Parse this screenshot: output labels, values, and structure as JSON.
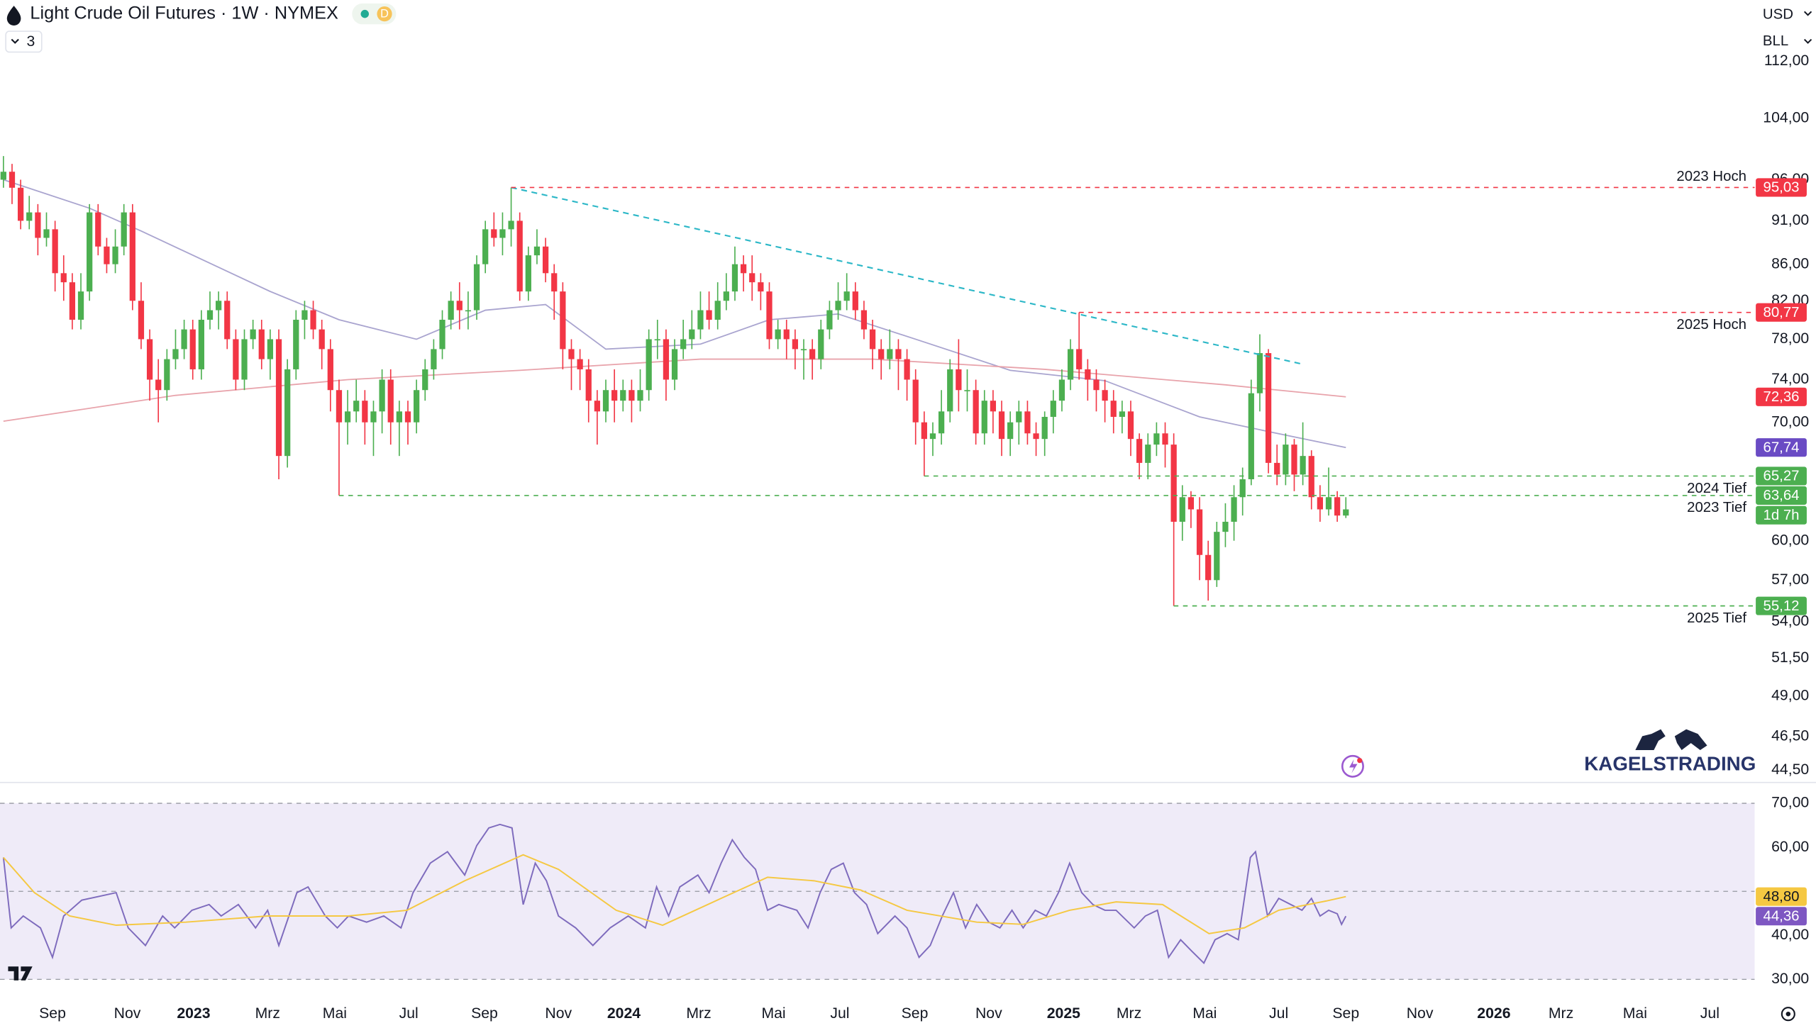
{
  "toolbar": {
    "title": "Light Crude Oil Futures · 1W · NYMEX",
    "badge": "D",
    "indicators": "3",
    "currency": "USD",
    "unit": "BLL"
  },
  "watermark": "KAGELSTRADING",
  "chart_data": [
    {
      "type": "candlestick",
      "scale": "log",
      "xlim": [
        -0.4,
        203.5
      ],
      "ylim": [
        43.8,
        121.3
      ],
      "xticks": [
        {
          "value": 5.7,
          "label": "Sep"
        },
        {
          "value": 14.4,
          "label": "Nov"
        },
        {
          "value": 22.1,
          "label": "2023"
        },
        {
          "value": 30.7,
          "label": "Mrz"
        },
        {
          "value": 38.5,
          "label": "Mai"
        },
        {
          "value": 47.1,
          "label": "Jul"
        },
        {
          "value": 55.9,
          "label": "Sep"
        },
        {
          "value": 64.5,
          "label": "Nov"
        },
        {
          "value": 72.1,
          "label": "2024"
        },
        {
          "value": 80.8,
          "label": "Mrz"
        },
        {
          "value": 89.5,
          "label": "Mai"
        },
        {
          "value": 97.2,
          "label": "Jul"
        },
        {
          "value": 105.9,
          "label": "Sep"
        },
        {
          "value": 114.5,
          "label": "Nov"
        },
        {
          "value": 123.2,
          "label": "2025"
        },
        {
          "value": 130.8,
          "label": "Mrz"
        },
        {
          "value": 139.6,
          "label": "Mai"
        },
        {
          "value": 148.2,
          "label": "Jul"
        },
        {
          "value": 156,
          "label": "Sep"
        },
        {
          "value": 164.6,
          "label": "Nov"
        },
        {
          "value": 173.2,
          "label": "2026"
        },
        {
          "value": 181,
          "label": "Mrz"
        },
        {
          "value": 189.6,
          "label": "Mai"
        },
        {
          "value": 198.3,
          "label": "Jul"
        }
      ],
      "yticks": [
        {
          "value": 112,
          "label": "112,00"
        },
        {
          "value": 104,
          "label": "104,00"
        },
        {
          "value": 96,
          "label": "96,00"
        },
        {
          "value": 91,
          "label": "91,00"
        },
        {
          "value": 86,
          "label": "86,00"
        },
        {
          "value": 82,
          "label": "82,00"
        },
        {
          "value": 78,
          "label": "78,00"
        },
        {
          "value": 74,
          "label": "74,00"
        },
        {
          "value": 70,
          "label": "70,00"
        },
        {
          "value": 60,
          "label": "60,00"
        },
        {
          "value": 57,
          "label": "57,00"
        },
        {
          "value": 54,
          "label": "54,00"
        },
        {
          "value": 51.5,
          "label": "51,50"
        },
        {
          "value": 49,
          "label": "49,00"
        },
        {
          "value": 46.5,
          "label": "46,50"
        },
        {
          "value": 44.5,
          "label": "44,50"
        }
      ],
      "up_color": "#4caf50",
      "down_color": "#f23645",
      "open": [
        96,
        97,
        95,
        91,
        92,
        89,
        90,
        85,
        84,
        80,
        83,
        92,
        88,
        86,
        88,
        92,
        82,
        78,
        74,
        73,
        76,
        77,
        79,
        75,
        80,
        81,
        82,
        78,
        74,
        78,
        79,
        76,
        78,
        67,
        75,
        80,
        81,
        79,
        77,
        73,
        70,
        71,
        72,
        70,
        71,
        74,
        70,
        71,
        70,
        73,
        75,
        77,
        80,
        82,
        81,
        81,
        86,
        90,
        89,
        90,
        91,
        83,
        87,
        88,
        85,
        83,
        77,
        76,
        75,
        72,
        71,
        73,
        72,
        73,
        72,
        73,
        78,
        78,
        74,
        77,
        78,
        79,
        81,
        80,
        82,
        83,
        86,
        85,
        84,
        83,
        78,
        79,
        78,
        77,
        77,
        76,
        79,
        81,
        82,
        83,
        81,
        79,
        77,
        76,
        77,
        76,
        74,
        70,
        68.5,
        69,
        71,
        75,
        73,
        73,
        69,
        72,
        71,
        68.5,
        70,
        71,
        69,
        68.5,
        70.5,
        72,
        74,
        77,
        75,
        74,
        73,
        72,
        70.5,
        71,
        68.5,
        66.4,
        68,
        69,
        68,
        61.5,
        63.5,
        62.5,
        58.9,
        57,
        60.7,
        61.5,
        63.5,
        65,
        72.7,
        76.6,
        66.4,
        65.4,
        68,
        65.4,
        67,
        63.5,
        62.5,
        63.5,
        62
      ],
      "high": [
        99,
        98,
        96,
        94,
        93,
        92,
        91,
        87,
        85,
        85,
        93,
        93,
        89,
        90,
        93,
        93,
        84,
        79,
        76,
        77,
        79,
        80,
        80,
        81,
        83,
        83,
        83,
        79,
        79,
        80,
        80,
        79,
        79,
        76,
        81,
        82,
        82,
        80,
        78,
        74,
        73,
        74,
        73,
        72,
        75,
        75,
        72,
        72,
        74,
        76,
        78,
        81,
        83,
        84,
        83,
        87,
        91,
        92,
        92,
        95.03,
        92,
        88,
        90,
        89,
        86,
        84,
        78,
        77,
        76,
        73,
        74,
        75,
        74,
        74,
        75,
        79,
        80,
        79,
        78,
        80,
        81,
        83,
        83,
        84,
        85,
        88,
        87,
        87,
        85,
        84,
        80,
        80,
        79,
        78,
        78,
        80,
        82,
        84,
        85,
        84,
        82,
        80,
        78,
        79,
        78,
        77,
        75,
        71,
        70,
        73,
        76,
        78,
        75,
        74,
        73,
        73,
        72,
        71,
        72,
        72,
        70,
        71,
        73,
        75,
        78,
        80.77,
        76,
        75,
        74,
        73,
        72,
        72,
        69,
        69,
        70,
        70,
        69,
        64.5,
        64,
        63.5,
        60,
        61.5,
        63,
        64.5,
        66,
        74,
        78.5,
        77,
        68,
        69,
        68.5,
        70,
        67.5,
        64.5,
        66,
        64,
        63.5
      ],
      "low": [
        95,
        93,
        90,
        90,
        87,
        88,
        83,
        82,
        79,
        79,
        82,
        87,
        85,
        85,
        87,
        81,
        77,
        72,
        70,
        72,
        75,
        76,
        74,
        74,
        79,
        79,
        77,
        73,
        73,
        77,
        75,
        74,
        65,
        66,
        74,
        78,
        78,
        75,
        71,
        63.64,
        68,
        70,
        68,
        67,
        69,
        68,
        67,
        68,
        69,
        72,
        74,
        76,
        79,
        79,
        79,
        80,
        85,
        88,
        87,
        88,
        82,
        82,
        86,
        84,
        80,
        75,
        73,
        73,
        70,
        68,
        70,
        70,
        71,
        70,
        71,
        72,
        76,
        72,
        73,
        76,
        77,
        78,
        79,
        79,
        81,
        82,
        83,
        82,
        81,
        77,
        77,
        76,
        75,
        74,
        74,
        75,
        78,
        80,
        81,
        80,
        78,
        75,
        74,
        75,
        73,
        72,
        68,
        65.27,
        67,
        68,
        70,
        71,
        71,
        68,
        68,
        69,
        67,
        67,
        68,
        68,
        67,
        67,
        69,
        71,
        73,
        74,
        72,
        71,
        70,
        69,
        69,
        67,
        65,
        65,
        67,
        66,
        55.12,
        60,
        61,
        57,
        55.5,
        56.5,
        59.5,
        60,
        62,
        64.5,
        71,
        65.5,
        64.5,
        64.5,
        64,
        64.5,
        62.5,
        61.5,
        62,
        61.5,
        61.8
      ],
      "close": [
        97,
        95,
        91,
        92,
        89,
        90,
        85,
        84,
        80,
        83,
        92,
        88,
        86,
        88,
        92,
        82,
        78,
        74,
        73,
        76,
        77,
        79,
        75,
        80,
        81,
        82,
        78,
        74,
        78,
        79,
        76,
        78,
        67,
        75,
        80,
        81,
        79,
        77,
        73,
        70,
        71,
        72,
        70,
        71,
        74,
        70,
        71,
        70,
        73,
        75,
        77,
        80,
        82,
        81,
        81,
        86,
        90,
        89,
        90,
        91,
        83,
        87,
        88,
        85,
        83,
        77,
        76,
        75,
        72,
        71,
        73,
        72,
        73,
        72,
        73,
        78,
        78,
        74,
        77,
        78,
        79,
        81,
        80,
        82,
        83,
        86,
        85,
        84,
        83,
        78,
        79,
        78,
        77,
        77,
        76,
        79,
        81,
        82,
        83,
        81,
        79,
        77,
        76,
        77,
        76,
        74,
        70,
        68.5,
        69,
        71,
        75,
        73,
        73,
        69,
        72,
        71,
        68.5,
        70,
        71,
        69,
        68.5,
        70.5,
        72,
        74,
        77,
        75,
        74,
        73,
        72,
        70.5,
        71,
        68.5,
        66.4,
        68,
        69,
        68,
        61.5,
        63.5,
        62.5,
        58.9,
        57,
        60.7,
        61.5,
        63.5,
        65,
        72.7,
        76.6,
        66.4,
        65.4,
        68,
        65.4,
        67,
        63.5,
        62.5,
        63.5,
        62,
        62.5
      ],
      "series": [
        {
          "color": "#a9a4cf",
          "label_color": "#6a4bc4",
          "x": [
            0,
            10,
            16,
            31,
            39,
            48,
            56,
            63,
            70,
            81,
            89,
            97,
            106,
            117,
            128,
            139,
            148,
            156
          ],
          "values": [
            96,
            92.5,
            89.8,
            83,
            80,
            78,
            81,
            81.6,
            77,
            77.5,
            80,
            80.6,
            78,
            74.9,
            73.9,
            70.5,
            69,
            67.74
          ],
          "last_label": "67,74"
        },
        {
          "color": "#e8a3ab",
          "label_color": "#f23645",
          "x": [
            0,
            20,
            40,
            60,
            81,
            101,
            121,
            142,
            156
          ],
          "values": [
            70.1,
            72.5,
            74,
            74.9,
            76,
            76,
            75,
            73.5,
            72.36
          ],
          "last_label": "72,36"
        }
      ],
      "trendline": {
        "color": "#2bb7c7",
        "x": [
          59,
          151
        ],
        "values": [
          95.03,
          75.5
        ]
      },
      "levels": [
        {
          "name": "2023 Hoch",
          "value": 95.03,
          "value_label": "95,03",
          "start": 59,
          "color": "#f23645"
        },
        {
          "name": "2025 Hoch",
          "value": 80.77,
          "value_label": "80,77",
          "start": 125,
          "color": "#f23645"
        },
        {
          "name": "2024 Tief",
          "value": 65.27,
          "value_label": "65,27",
          "start": 107,
          "color": "#4caf50"
        },
        {
          "name": "2023 Tief",
          "value": 63.64,
          "value_label": "63,64",
          "start": 39,
          "color": "#4caf50"
        },
        {
          "name": "2025 Tief",
          "value": 55.12,
          "value_label": "55,12",
          "start": 136,
          "color": "#4caf50"
        }
      ],
      "countdown": "1d 7h"
    },
    {
      "type": "line",
      "ylim": [
        29.5,
        72.1
      ],
      "yticks": [
        {
          "value": 70,
          "label": "70,00"
        },
        {
          "value": 60,
          "label": "60,00"
        },
        {
          "value": 40,
          "label": "40,00"
        },
        {
          "value": 30,
          "label": "30,00"
        }
      ],
      "bands": [
        70,
        50,
        30
      ],
      "band_fill": "#efebf8",
      "series": [
        {
          "color": "#7e6bbd",
          "label_color": "#7e57c2",
          "x": [
            0,
            0.9,
            2.3,
            4.3,
            5.7,
            7,
            9.1,
            13.1,
            14.5,
            16.5,
            18.5,
            19.9,
            21.9,
            23.9,
            25.3,
            27.3,
            29.3,
            30.7,
            32,
            34.1,
            35.4,
            37.4,
            38.8,
            40.1,
            42.2,
            44.2,
            46.2,
            47.6,
            49.6,
            51.6,
            53.6,
            55,
            56.4,
            57.7,
            59.1,
            60.4,
            61.8,
            63.1,
            64.5,
            66.5,
            68.5,
            70.5,
            72.6,
            74.6,
            75.9,
            77.3,
            78.6,
            80.7,
            82,
            83.4,
            84.7,
            86.1,
            87.4,
            88.8,
            90.1,
            92.2,
            93.5,
            94.9,
            96.2,
            97.6,
            98.9,
            100.3,
            101.6,
            103.6,
            105,
            106.4,
            107.7,
            109.1,
            110.4,
            111.8,
            113.1,
            114.5,
            115.8,
            117.2,
            118.5,
            119.9,
            121.2,
            122.6,
            123.9,
            125.3,
            126.6,
            128,
            129.3,
            131.4,
            132.7,
            134.1,
            135.4,
            136.8,
            138.1,
            139.5,
            140.8,
            142.2,
            143.5,
            144.9,
            145.5,
            146.9,
            148.2,
            149.6,
            150.9,
            152,
            153,
            154,
            155,
            155.5,
            156
          ],
          "values": [
            57.7,
            41.7,
            44.4,
            41.7,
            35,
            44.4,
            48,
            49.7,
            41.7,
            37.7,
            44.4,
            41.7,
            45.7,
            47,
            44.4,
            47,
            41.7,
            45.7,
            37.7,
            49.7,
            51,
            44.4,
            41.7,
            44.4,
            43,
            44.4,
            41.7,
            49.7,
            56.4,
            59,
            53.7,
            60.4,
            64.4,
            65.2,
            64.4,
            47,
            56.4,
            52.4,
            44.4,
            41.7,
            37.7,
            41.7,
            44.4,
            41.7,
            51,
            44.4,
            51,
            53.7,
            49.7,
            56.4,
            61.7,
            57.7,
            55,
            45.7,
            47,
            45.7,
            41.7,
            49.7,
            55,
            56.4,
            49.7,
            47,
            40.4,
            44.4,
            41.7,
            35,
            37.7,
            44.4,
            49.7,
            41.7,
            47,
            43,
            41.7,
            45.7,
            41.7,
            45.7,
            44.4,
            49.7,
            56.4,
            49.7,
            47,
            45.7,
            45.7,
            41.7,
            44.4,
            45.7,
            35,
            39,
            36.4,
            33.7,
            39,
            40.4,
            39,
            57.7,
            59,
            44.4,
            48.4,
            47,
            45.7,
            48.4,
            44.4,
            45.7,
            44.9,
            42.5,
            44.36
          ],
          "last_label": "44,36"
        },
        {
          "color": "#f5c842",
          "label_color": "#f5c842",
          "x": [
            0,
            3.6,
            7.7,
            13.1,
            21.2,
            30.7,
            40.1,
            46.9,
            53.6,
            60.4,
            64.5,
            71.2,
            76.6,
            83.4,
            88.8,
            94.2,
            99.6,
            105,
            113.1,
            118.5,
            123.9,
            129.3,
            134.7,
            140.1,
            144.2,
            148.2,
            153.7,
            156
          ],
          "values": [
            57.7,
            49.7,
            44.4,
            42.3,
            43,
            44.4,
            44.4,
            45.7,
            52.4,
            58.3,
            55,
            45.7,
            42.3,
            48.4,
            53.2,
            52.4,
            50.3,
            45.7,
            43,
            42.5,
            45.7,
            47.6,
            47,
            40.4,
            41.7,
            45.7,
            47.8,
            48.8
          ],
          "last_label": "48,80"
        }
      ]
    }
  ]
}
